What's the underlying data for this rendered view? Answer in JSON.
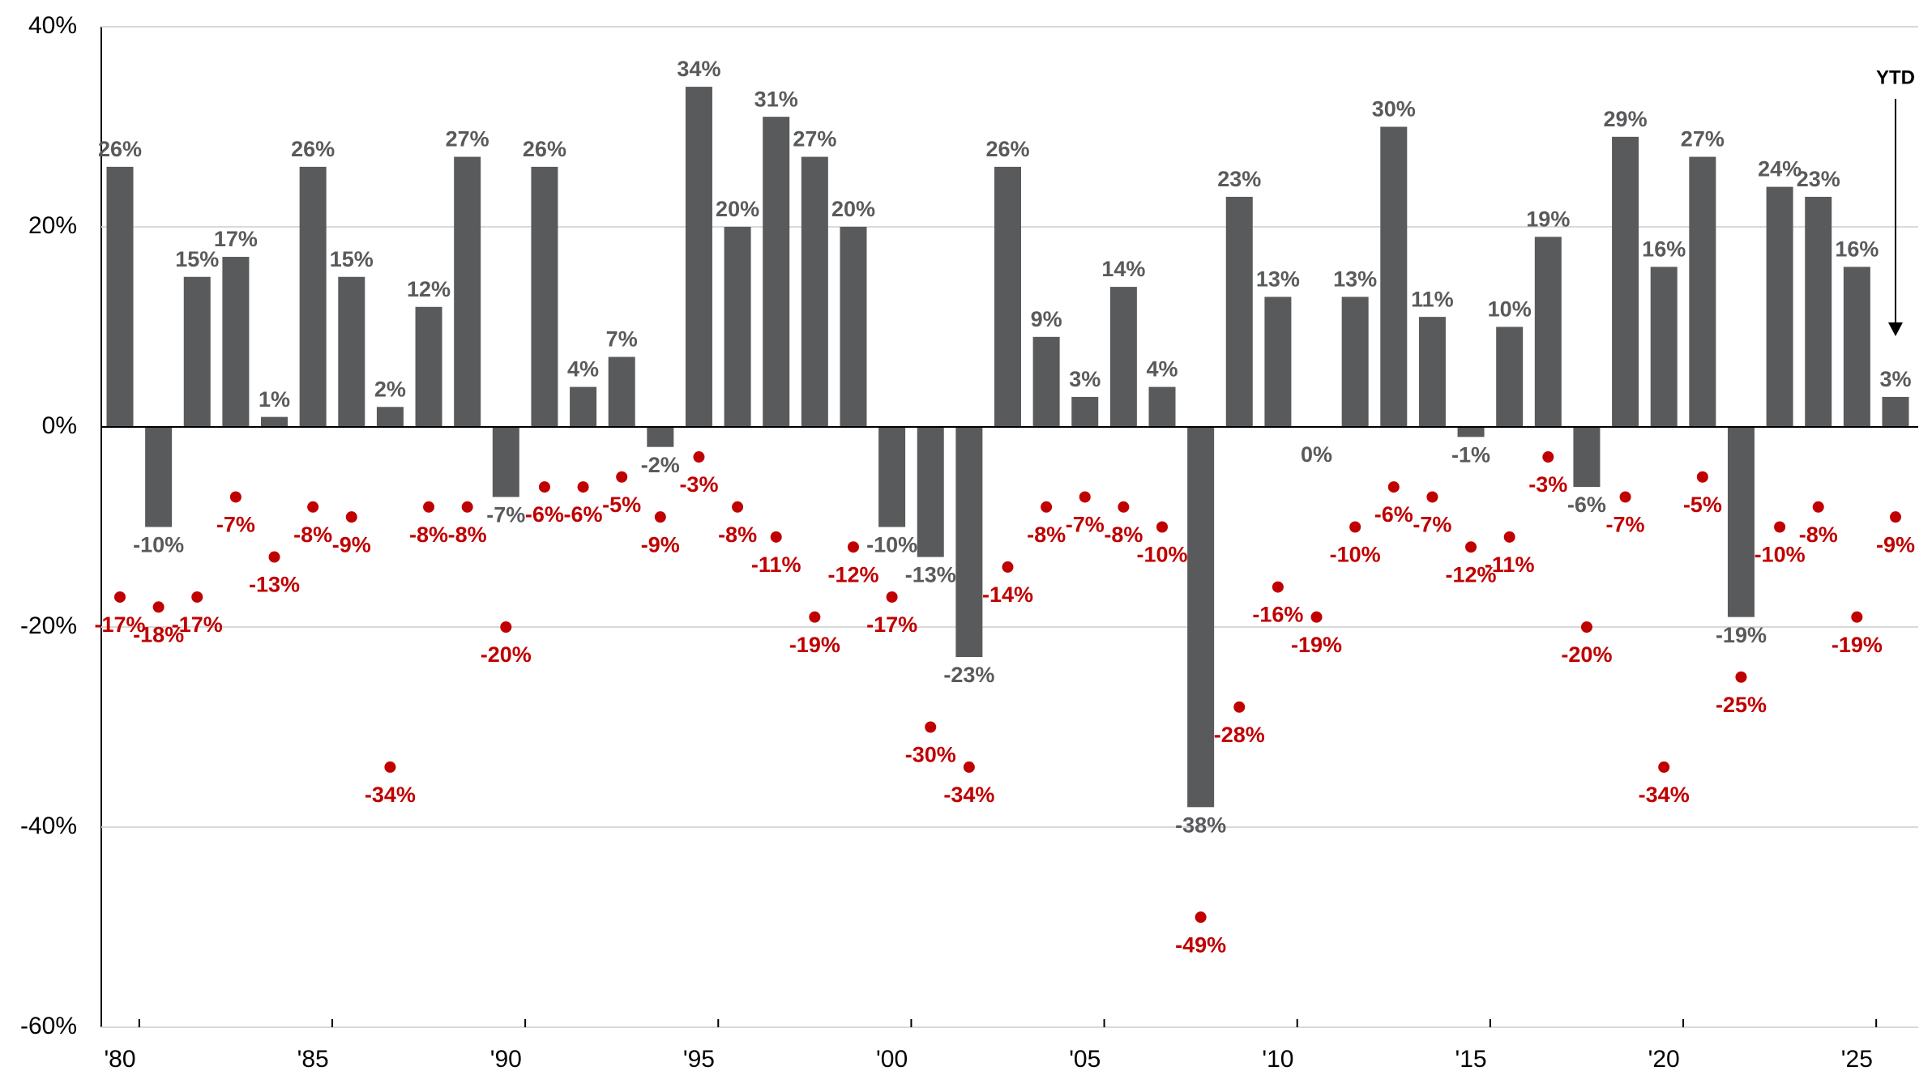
{
  "chart_data": {
    "type": "bar",
    "categories": [
      "'80",
      null,
      null,
      null,
      null,
      "'85",
      null,
      null,
      null,
      null,
      "'90",
      null,
      null,
      null,
      null,
      "'95",
      null,
      null,
      null,
      null,
      "'00",
      null,
      null,
      null,
      null,
      "'05",
      null,
      null,
      null,
      null,
      "'10",
      null,
      null,
      null,
      null,
      "'15",
      null,
      null,
      null,
      null,
      "'20",
      null,
      null,
      null,
      null,
      "'25",
      null
    ],
    "series": [
      {
        "type": "bar",
        "color": "#595a5c",
        "values": [
          26,
          -10,
          15,
          17,
          1,
          26,
          15,
          2,
          12,
          27,
          -7,
          26,
          4,
          7,
          -2,
          34,
          20,
          31,
          27,
          20,
          -10,
          -13,
          -23,
          26,
          9,
          3,
          14,
          4,
          -38,
          23,
          13,
          0,
          13,
          30,
          11,
          -1,
          10,
          19,
          -6,
          29,
          16,
          27,
          -19,
          24,
          23,
          16,
          3
        ],
        "value_labels": [
          "26%",
          "-10%",
          "15%",
          "17%",
          "1%",
          "26%",
          "15%",
          "2%",
          "12%",
          "27%",
          "-7%",
          "26%",
          "4%",
          "7%",
          "-2%",
          "34%",
          "20%",
          "31%",
          "27%",
          "20%",
          "-10%",
          "-13%",
          "-23%",
          "26%",
          "9%",
          "3%",
          "14%",
          "4%",
          "-38%",
          "23%",
          "13%",
          "0%",
          "13%",
          "30%",
          "11%",
          "-1%",
          "10%",
          "19%",
          "-6%",
          "29%",
          "16%",
          "27%",
          "-19%",
          "24%",
          "23%",
          "16%",
          "3%"
        ]
      },
      {
        "type": "scatter",
        "color": "#c00000",
        "values": [
          -17,
          -18,
          -17,
          -7,
          -13,
          -8,
          -9,
          -34,
          -8,
          -8,
          -20,
          -6,
          -6,
          -5,
          -9,
          -3,
          -8,
          -11,
          -19,
          -12,
          -17,
          -30,
          -34,
          -14,
          -8,
          -7,
          -8,
          -10,
          -49,
          -28,
          -16,
          -19,
          -10,
          -6,
          -7,
          -12,
          -11,
          -3,
          -20,
          -7,
          -34,
          -5,
          -25,
          -10,
          -8,
          -19,
          -9
        ],
        "value_labels": [
          "-17%",
          "-18%",
          "-17%",
          "-7%",
          "-13%",
          "-8%",
          "-9%",
          "-34%",
          "-8%",
          "-8%",
          "-20%",
          "-6%",
          "-6%",
          "-5%",
          "-9%",
          "-3%",
          "-8%",
          "-11%",
          "-19%",
          "-12%",
          "-17%",
          "-30%",
          "-34%",
          "-14%",
          "-8%",
          "-7%",
          "-8%",
          "-10%",
          "-49%",
          "-28%",
          "-16%",
          "-19%",
          "-10%",
          "-6%",
          "-7%",
          "-12%",
          "-11%",
          "-3%",
          "-20%",
          "-7%",
          "-34%",
          "-5%",
          "-25%",
          "-10%",
          "-8%",
          "-19%",
          "-9%"
        ]
      }
    ],
    "ylim": [
      -60,
      40
    ],
    "yticks": [
      {
        "value": 40,
        "label": "40%"
      },
      {
        "value": 20,
        "label": "20%"
      },
      {
        "value": 0,
        "label": "0%"
      },
      {
        "value": -20,
        "label": "-20%"
      },
      {
        "value": -40,
        "label": "-40%"
      },
      {
        "value": -60,
        "label": "-60%"
      }
    ],
    "grid": true,
    "annotation": "YTD"
  }
}
